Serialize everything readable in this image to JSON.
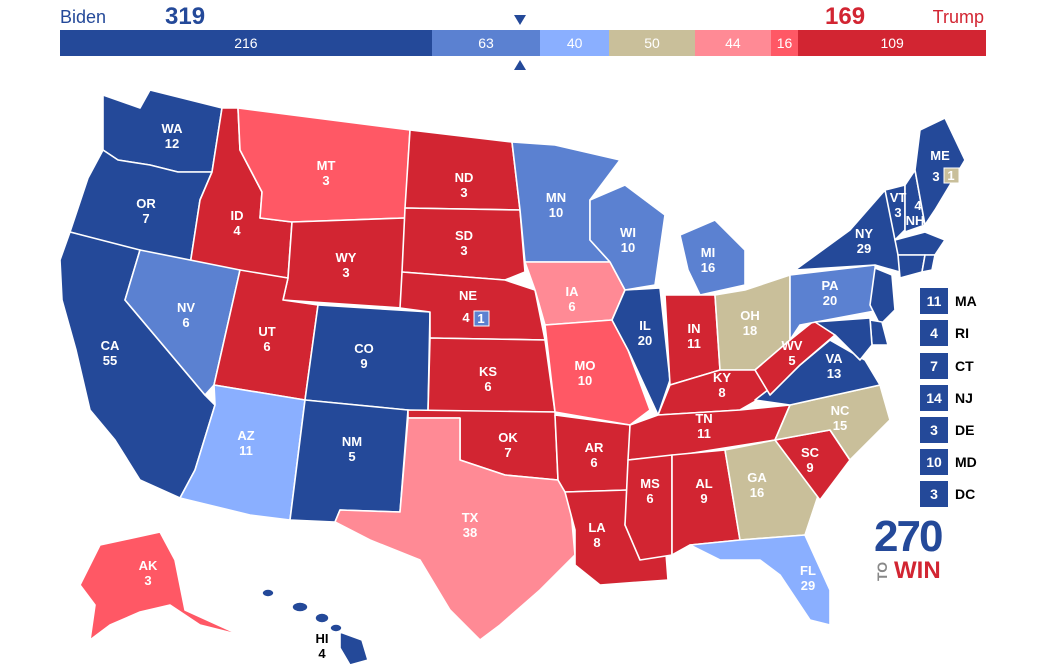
{
  "header": {
    "biden_label": "Biden",
    "trump_label": "Trump",
    "biden_total": "319",
    "trump_total": "169"
  },
  "bar": [
    {
      "value": 216,
      "label": "216",
      "color": "#244999"
    },
    {
      "value": 63,
      "label": "63",
      "color": "#5b81d1"
    },
    {
      "value": 40,
      "label": "40",
      "color": "#8aafff"
    },
    {
      "value": 50,
      "label": "50",
      "color": "#c9bf9a"
    },
    {
      "value": 44,
      "label": "44",
      "color": "#ff8a95"
    },
    {
      "value": 16,
      "label": "16",
      "color": "#ff5865"
    },
    {
      "value": 109,
      "label": "109",
      "color": "#d22532"
    }
  ],
  "colors": {
    "safe_d": "#244999",
    "likely_d": "#5b81d1",
    "lean_d": "#8aafff",
    "tossup": "#c9bf9a",
    "lean_r": "#ff8a95",
    "likely_r": "#ff5865",
    "safe_r": "#d22532"
  },
  "states": {
    "WA": {
      "abbr": "WA",
      "ev": "12"
    },
    "OR": {
      "abbr": "OR",
      "ev": "7"
    },
    "CA": {
      "abbr": "CA",
      "ev": "55"
    },
    "ID": {
      "abbr": "ID",
      "ev": "4"
    },
    "NV": {
      "abbr": "NV",
      "ev": "6"
    },
    "MT": {
      "abbr": "MT",
      "ev": "3"
    },
    "WY": {
      "abbr": "WY",
      "ev": "3"
    },
    "UT": {
      "abbr": "UT",
      "ev": "6"
    },
    "AZ": {
      "abbr": "AZ",
      "ev": "11"
    },
    "CO": {
      "abbr": "CO",
      "ev": "9"
    },
    "NM": {
      "abbr": "NM",
      "ev": "5"
    },
    "ND": {
      "abbr": "ND",
      "ev": "3"
    },
    "SD": {
      "abbr": "SD",
      "ev": "3"
    },
    "NE": {
      "abbr": "NE",
      "ev": "4",
      "district": "1"
    },
    "KS": {
      "abbr": "KS",
      "ev": "6"
    },
    "OK": {
      "abbr": "OK",
      "ev": "7"
    },
    "TX": {
      "abbr": "TX",
      "ev": "38"
    },
    "MN": {
      "abbr": "MN",
      "ev": "10"
    },
    "IA": {
      "abbr": "IA",
      "ev": "6"
    },
    "MO": {
      "abbr": "MO",
      "ev": "10"
    },
    "AR": {
      "abbr": "AR",
      "ev": "6"
    },
    "LA": {
      "abbr": "LA",
      "ev": "8"
    },
    "WI": {
      "abbr": "WI",
      "ev": "10"
    },
    "IL": {
      "abbr": "IL",
      "ev": "20"
    },
    "MI": {
      "abbr": "MI",
      "ev": "16"
    },
    "IN": {
      "abbr": "IN",
      "ev": "11"
    },
    "OH": {
      "abbr": "OH",
      "ev": "18"
    },
    "KY": {
      "abbr": "KY",
      "ev": "8"
    },
    "TN": {
      "abbr": "TN",
      "ev": "11"
    },
    "MS": {
      "abbr": "MS",
      "ev": "6"
    },
    "AL": {
      "abbr": "AL",
      "ev": "9"
    },
    "GA": {
      "abbr": "GA",
      "ev": "16"
    },
    "FL": {
      "abbr": "FL",
      "ev": "29"
    },
    "SC": {
      "abbr": "SC",
      "ev": "9"
    },
    "NC": {
      "abbr": "NC",
      "ev": "15"
    },
    "VA": {
      "abbr": "VA",
      "ev": "13"
    },
    "WV": {
      "abbr": "WV",
      "ev": "5"
    },
    "PA": {
      "abbr": "PA",
      "ev": "20"
    },
    "NY": {
      "abbr": "NY",
      "ev": "29"
    },
    "VT": {
      "abbr": "VT",
      "ev": "3"
    },
    "NH": {
      "abbr": "NH",
      "ev": "4"
    },
    "ME": {
      "abbr": "ME",
      "ev": "3",
      "district": "1"
    },
    "AK": {
      "abbr": "AK",
      "ev": "3"
    },
    "HI": {
      "abbr": "HI",
      "ev": "4"
    }
  },
  "small_states": [
    {
      "abbr": "MA",
      "ev": "11"
    },
    {
      "abbr": "RI",
      "ev": "4"
    },
    {
      "abbr": "CT",
      "ev": "7"
    },
    {
      "abbr": "NJ",
      "ev": "14"
    },
    {
      "abbr": "DE",
      "ev": "3"
    },
    {
      "abbr": "MD",
      "ev": "10"
    },
    {
      "abbr": "DC",
      "ev": "3"
    }
  ],
  "logo": {
    "number": "270",
    "to": "TO",
    "win": "WIN"
  }
}
